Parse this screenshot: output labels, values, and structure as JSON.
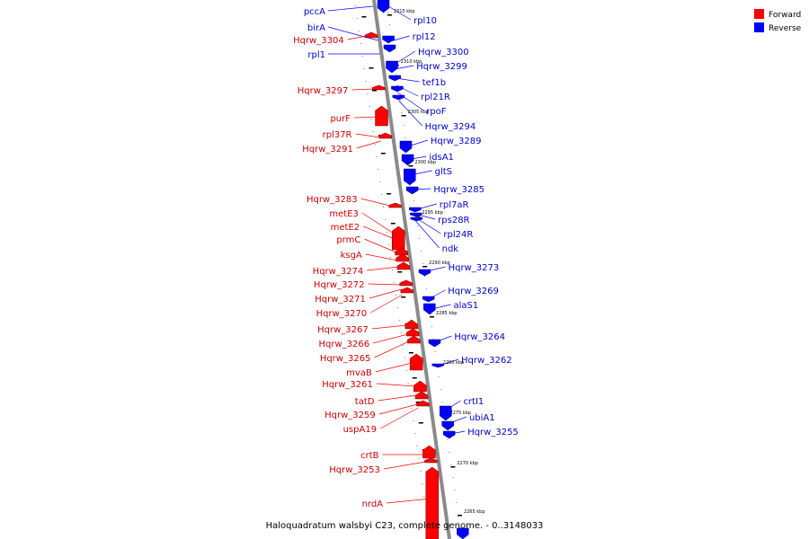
{
  "caption": "Haloquadratum walsbyi C23, complete genome. - 0..3148033",
  "legend": [
    {
      "label": "Forward",
      "color": "#ff0000"
    },
    {
      "label": "Reverse",
      "color": "#0000ff"
    }
  ],
  "colors": {
    "forward": "#ff0000",
    "reverse": "#0000ff",
    "forward_label": "#cc0000",
    "reverse_label": "#0000cc",
    "backbone": "#8a8a8a"
  },
  "ticks": [
    "2315 kbp",
    "2310 kbp",
    "2305 kbp",
    "2300 kbp",
    "2295 kbp",
    "2290 kbp",
    "2285 kbp",
    "2280 kbp",
    "2275 kbp",
    "2270 kbp",
    "2265 kbp"
  ],
  "genes_reverse": [
    "pccA",
    "birA",
    "rpl1",
    "rpl10",
    "rpl12",
    "Hqrw_3300",
    "Hqrw_3299",
    "tef1b",
    "rpl21R",
    "rpoF",
    "Hqrw_3294",
    "Hqrw_3289",
    "idsA1",
    "gltS",
    "Hqrw_3285",
    "rpl7aR",
    "rps28R",
    "rpl24R",
    "ndk",
    "Hqrw_3273",
    "Hqrw_3269",
    "alaS1",
    "Hqrw_3264",
    "Hqrw_3262",
    "crtI1",
    "ubiA1",
    "Hqrw_3255"
  ],
  "genes_forward": [
    "Hqrw_3304",
    "Hqrw_3297",
    "purF",
    "rpl37R",
    "Hqrw_3291",
    "Hqrw_3283",
    "metE3",
    "metE2",
    "prmC",
    "ksgA",
    "Hqrw_3274",
    "Hqrw_3272",
    "Hqrw_3271",
    "Hqrw_3270",
    "Hqrw_3267",
    "Hqrw_3266",
    "Hqrw_3265",
    "mvaB",
    "Hqrw_3261",
    "tatD",
    "Hqrw_3259",
    "uspA19",
    "crtB",
    "Hqrw_3253",
    "nrdA"
  ]
}
